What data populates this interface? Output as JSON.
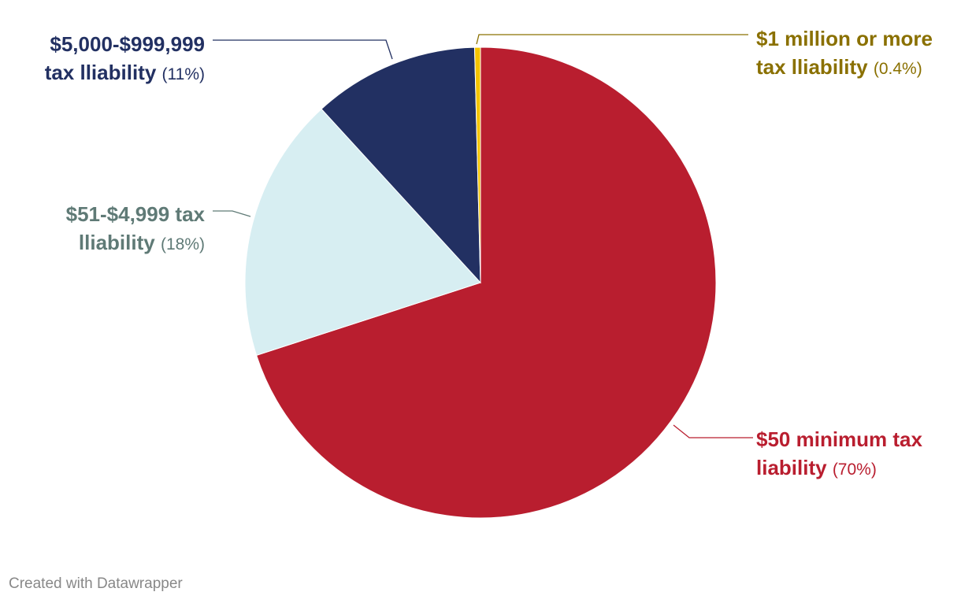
{
  "chart_data": {
    "type": "pie",
    "start_angle_deg": 0,
    "direction": "clockwise",
    "slices": [
      {
        "label_line1": "$50 minimum tax",
        "label_line2": "liability",
        "percent_label": "(70%)",
        "value": 70.0,
        "color": "#b91e2f",
        "text_color": "#b91e2f"
      },
      {
        "label_line1": "$51-$4,999 tax",
        "label_line2": "lliability",
        "percent_label": "(18%)",
        "value": 18.2,
        "color": "#d7eef2",
        "text_color": "#5f7a76"
      },
      {
        "label_line1": "$5,000-$999,999",
        "label_line2": "tax lliability",
        "percent_label": "(11%)",
        "value": 11.4,
        "color": "#223062",
        "text_color": "#223062"
      },
      {
        "label_line1": "$1 million or more",
        "label_line2": "tax lliability",
        "percent_label": "(0.4%)",
        "value": 0.4,
        "color": "#f5c400",
        "text_color": "#8a7000"
      }
    ]
  },
  "footer": {
    "credit": "Created with Datawrapper"
  }
}
